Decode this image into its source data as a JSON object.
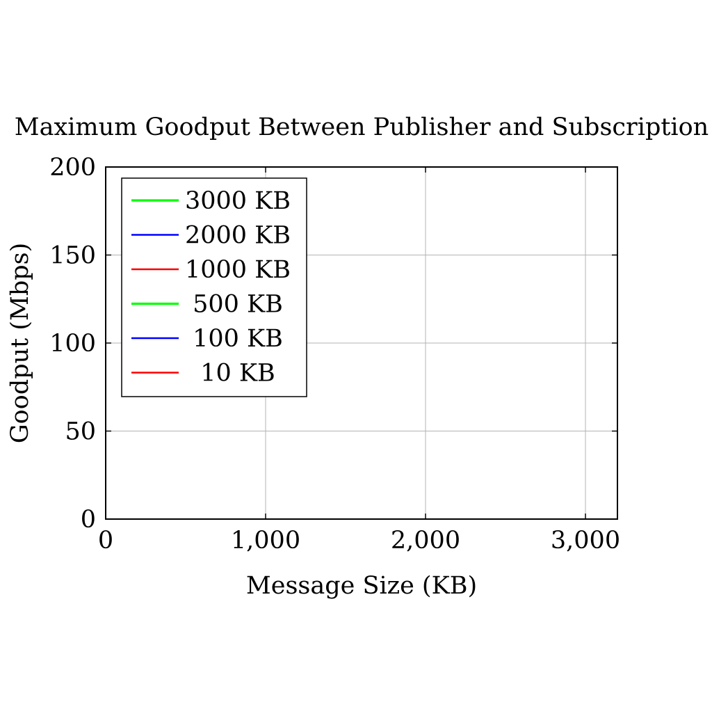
{
  "chart_data": {
    "type": "line",
    "title": "Maximum Goodput Between Publisher and Subscription",
    "xlabel": "Message Size (KB)",
    "ylabel": "Goodput (Mbps)",
    "xlim": [
      0,
      3200
    ],
    "ylim": [
      0,
      200
    ],
    "x_ticks": [
      0,
      1000,
      2000,
      3000
    ],
    "x_tick_labels": [
      "0",
      "1,000",
      "2,000",
      "3,000"
    ],
    "y_ticks": [
      0,
      50,
      100,
      150,
      200
    ],
    "y_tick_labels": [
      "0",
      "50",
      "100",
      "150",
      "200"
    ],
    "grid": true,
    "legend_position": "top-left",
    "series": [
      {
        "name": "3000 KB",
        "color": "#00ff00",
        "x": [],
        "y": []
      },
      {
        "name": "2000 KB",
        "color": "#0000ff",
        "x": [],
        "y": []
      },
      {
        "name": "1000 KB",
        "color": "#ff0000",
        "x": [],
        "y": []
      },
      {
        "name": "500 KB",
        "color": "#00ff00",
        "x": [],
        "y": []
      },
      {
        "name": "100 KB",
        "color": "#0000ff",
        "x": [],
        "y": []
      },
      {
        "name": "10 KB",
        "color": "#ff0000",
        "x": [],
        "y": []
      }
    ]
  }
}
